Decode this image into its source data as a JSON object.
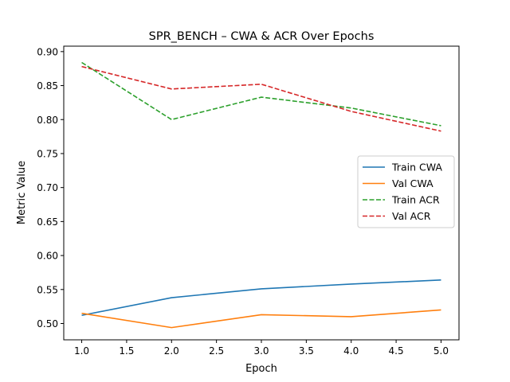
{
  "chart_data": {
    "type": "line",
    "title": "SPR_BENCH – CWA & ACR Over Epochs",
    "xlabel": "Epoch",
    "ylabel": "Metric Value",
    "x": [
      1,
      2,
      3,
      4,
      5
    ],
    "xlim": [
      0.8,
      5.2
    ],
    "ylim": [
      0.476,
      0.908
    ],
    "xticks": [
      "1.0",
      "1.5",
      "2.0",
      "2.5",
      "3.0",
      "3.5",
      "4.0",
      "4.5",
      "5.0"
    ],
    "yticks": [
      "0.50",
      "0.55",
      "0.60",
      "0.65",
      "0.70",
      "0.75",
      "0.80",
      "0.85",
      "0.90"
    ],
    "grid": false,
    "legend_position": "center-right",
    "series": [
      {
        "name": "Train CWA",
        "values": [
          0.512,
          0.538,
          0.551,
          0.558,
          0.564
        ],
        "color": "#1f77b4",
        "dash": "solid"
      },
      {
        "name": "Val CWA",
        "values": [
          0.515,
          0.494,
          0.513,
          0.51,
          0.52
        ],
        "color": "#ff7f0e",
        "dash": "dashed-false"
      },
      {
        "name": "Train ACR",
        "values": [
          0.884,
          0.8,
          0.833,
          0.817,
          0.791
        ],
        "color": "#2ca02c",
        "dash": "dashed"
      },
      {
        "name": "Val ACR",
        "values": [
          0.878,
          0.845,
          0.852,
          0.812,
          0.783
        ],
        "color": "#d62728",
        "dash": "dashed"
      }
    ]
  }
}
